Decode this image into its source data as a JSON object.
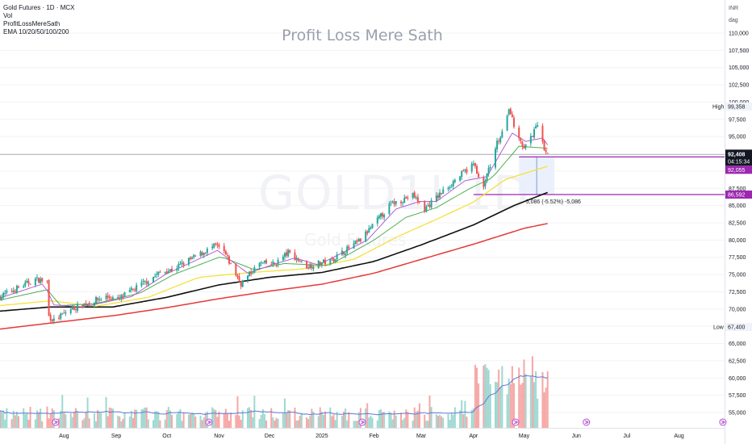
{
  "legend": {
    "title": "Gold Futures · 1D · MCX",
    "line2": "Vol",
    "line3": "ProfitLossMereSath",
    "line4": "EMA 10/20/50/100/200"
  },
  "watermark": {
    "main": "Profit Loss Mere Sath",
    "symbol": "GOLD1! 1D",
    "name": "Gold Futures"
  },
  "axis_header": {
    "currency": "INR",
    "unit": "dag"
  },
  "colors": {
    "up": "#26a69a",
    "down": "#ef5350",
    "ema10": "#b55dd6",
    "ema20": "#4caf50",
    "ema50": "#f5e13a",
    "ema100": "#111111",
    "ema200": "#e53935",
    "purple": "#9c27b0"
  },
  "chart_data": {
    "type": "candlestick",
    "title": "",
    "y_axis": {
      "ticks": [
        110000,
        107500,
        105000,
        102500,
        100000,
        97500,
        95000,
        92500,
        90000,
        87500,
        85000,
        82500,
        80000,
        77500,
        75000,
        72500,
        70000,
        67500,
        65000,
        62500,
        60000,
        57500,
        55000
      ],
      "tick_labels": [
        "110,000",
        "107,500",
        "105,000",
        "102,500",
        "100,000",
        "97,500",
        "95,000",
        "92,500",
        "90,000",
        "87,500",
        "85,000",
        "82,500",
        "80,000",
        "77,500",
        "75,000",
        "72,500",
        "70,000",
        "67,500",
        "65,000",
        "62,500",
        "60,000",
        "57,500",
        "55,000"
      ],
      "ylim": [
        54000,
        111500
      ]
    },
    "x_axis": {
      "labels": [
        "Aug",
        "Sep",
        "Oct",
        "Nov",
        "Dec",
        "2025",
        "Feb",
        "Mar",
        "Apr",
        "May",
        "Jun",
        "Jul",
        "Aug"
      ],
      "x_start": "2024-06-24",
      "x_end": "2025-08-28"
    },
    "markers": {
      "high": {
        "label": "High",
        "value": "99,358"
      },
      "low": {
        "label": "Low",
        "value": "67,400"
      },
      "last_price": {
        "value": "92,408",
        "countdown": "04:15:34"
      },
      "line_a": {
        "value": "92,055"
      },
      "line_b": {
        "value": "86,592"
      },
      "measure": "-5,086 (-5.52%) -5,086"
    },
    "price_keypoints": [
      {
        "date": "2024-06-24",
        "price": 71800
      },
      {
        "date": "2024-07-15",
        "price": 74300
      },
      {
        "date": "2024-07-22",
        "price": 74000
      },
      {
        "date": "2024-07-23",
        "price": 69000
      },
      {
        "date": "2024-07-26",
        "price": 68300
      },
      {
        "date": "2024-08-05",
        "price": 70000
      },
      {
        "date": "2024-08-26",
        "price": 71800
      },
      {
        "date": "2024-09-02",
        "price": 71400
      },
      {
        "date": "2024-09-27",
        "price": 75300
      },
      {
        "date": "2024-10-04",
        "price": 75700
      },
      {
        "date": "2024-10-30",
        "price": 79200
      },
      {
        "date": "2024-11-04",
        "price": 78200
      },
      {
        "date": "2024-11-14",
        "price": 73700
      },
      {
        "date": "2024-11-25",
        "price": 76600
      },
      {
        "date": "2024-12-04",
        "price": 76500
      },
      {
        "date": "2024-12-12",
        "price": 78200
      },
      {
        "date": "2024-12-23",
        "price": 76200
      },
      {
        "date": "2025-01-06",
        "price": 77000
      },
      {
        "date": "2025-01-24",
        "price": 80000
      },
      {
        "date": "2025-02-11",
        "price": 85200
      },
      {
        "date": "2025-02-24",
        "price": 86500
      },
      {
        "date": "2025-03-03",
        "price": 84500
      },
      {
        "date": "2025-03-20",
        "price": 88500
      },
      {
        "date": "2025-04-01",
        "price": 91000
      },
      {
        "date": "2025-04-07",
        "price": 87800
      },
      {
        "date": "2025-04-15",
        "price": 94000
      },
      {
        "date": "2025-04-22",
        "price": 98500
      },
      {
        "date": "2025-04-28",
        "price": 95200
      },
      {
        "date": "2025-05-01",
        "price": 93200
      },
      {
        "date": "2025-05-09",
        "price": 96500
      },
      {
        "date": "2025-05-13",
        "price": 93300
      },
      {
        "date": "2025-05-15",
        "price": 92400
      }
    ],
    "ema_keypoints": {
      "ema10": [
        {
          "date": "2024-06-24",
          "price": 71600
        },
        {
          "date": "2024-07-20",
          "price": 73700
        },
        {
          "date": "2024-07-26",
          "price": 70600
        },
        {
          "date": "2024-08-12",
          "price": 70300
        },
        {
          "date": "2024-09-10",
          "price": 71800
        },
        {
          "date": "2024-09-30",
          "price": 75000
        },
        {
          "date": "2024-10-31",
          "price": 78500
        },
        {
          "date": "2024-11-18",
          "price": 75200
        },
        {
          "date": "2024-12-05",
          "price": 76600
        },
        {
          "date": "2024-12-16",
          "price": 77400
        },
        {
          "date": "2024-12-30",
          "price": 76400
        },
        {
          "date": "2025-01-28",
          "price": 80000
        },
        {
          "date": "2025-02-14",
          "price": 84500
        },
        {
          "date": "2025-02-28",
          "price": 85600
        },
        {
          "date": "2025-03-10",
          "price": 85600
        },
        {
          "date": "2025-03-27",
          "price": 88600
        },
        {
          "date": "2025-04-09",
          "price": 89200
        },
        {
          "date": "2025-04-24",
          "price": 95500
        },
        {
          "date": "2025-05-02",
          "price": 94300
        },
        {
          "date": "2025-05-12",
          "price": 94800
        },
        {
          "date": "2025-05-15",
          "price": 93800
        }
      ],
      "ema20": [
        {
          "date": "2024-06-24",
          "price": 71300
        },
        {
          "date": "2024-07-22",
          "price": 72800
        },
        {
          "date": "2024-07-30",
          "price": 70500
        },
        {
          "date": "2024-08-20",
          "price": 70800
        },
        {
          "date": "2024-09-15",
          "price": 72300
        },
        {
          "date": "2024-10-05",
          "price": 75000
        },
        {
          "date": "2024-11-02",
          "price": 77600
        },
        {
          "date": "2024-11-22",
          "price": 75700
        },
        {
          "date": "2024-12-10",
          "price": 76600
        },
        {
          "date": "2025-01-05",
          "price": 76300
        },
        {
          "date": "2025-02-01",
          "price": 80000
        },
        {
          "date": "2025-02-20",
          "price": 83300
        },
        {
          "date": "2025-03-10",
          "price": 84700
        },
        {
          "date": "2025-03-30",
          "price": 87500
        },
        {
          "date": "2025-04-12",
          "price": 89000
        },
        {
          "date": "2025-04-28",
          "price": 93600
        },
        {
          "date": "2025-05-15",
          "price": 93300
        }
      ],
      "ema50": [
        {
          "date": "2024-06-24",
          "price": 70500
        },
        {
          "date": "2024-07-24",
          "price": 71200
        },
        {
          "date": "2024-08-20",
          "price": 70400
        },
        {
          "date": "2024-09-20",
          "price": 71700
        },
        {
          "date": "2024-10-20",
          "price": 74600
        },
        {
          "date": "2024-11-20",
          "price": 75300
        },
        {
          "date": "2024-12-20",
          "price": 75800
        },
        {
          "date": "2025-01-20",
          "price": 77200
        },
        {
          "date": "2025-02-15",
          "price": 80500
        },
        {
          "date": "2025-03-10",
          "price": 83000
        },
        {
          "date": "2025-04-01",
          "price": 85500
        },
        {
          "date": "2025-04-20",
          "price": 88800
        },
        {
          "date": "2025-05-15",
          "price": 90700
        }
      ],
      "ema100": [
        {
          "date": "2024-06-24",
          "price": 69700
        },
        {
          "date": "2024-07-24",
          "price": 70300
        },
        {
          "date": "2024-08-30",
          "price": 70300
        },
        {
          "date": "2024-10-01",
          "price": 71700
        },
        {
          "date": "2024-11-01",
          "price": 73500
        },
        {
          "date": "2024-12-01",
          "price": 74600
        },
        {
          "date": "2025-01-01",
          "price": 75300
        },
        {
          "date": "2025-02-01",
          "price": 76900
        },
        {
          "date": "2025-03-01",
          "price": 79300
        },
        {
          "date": "2025-04-01",
          "price": 82200
        },
        {
          "date": "2025-04-25",
          "price": 85000
        },
        {
          "date": "2025-05-15",
          "price": 86900
        }
      ],
      "ema200": [
        {
          "date": "2024-06-24",
          "price": 67100
        },
        {
          "date": "2024-08-01",
          "price": 68200
        },
        {
          "date": "2024-09-01",
          "price": 69100
        },
        {
          "date": "2024-10-01",
          "price": 70200
        },
        {
          "date": "2024-11-01",
          "price": 71500
        },
        {
          "date": "2024-12-01",
          "price": 72600
        },
        {
          "date": "2025-01-01",
          "price": 73600
        },
        {
          "date": "2025-02-01",
          "price": 75200
        },
        {
          "date": "2025-03-01",
          "price": 77200
        },
        {
          "date": "2025-04-01",
          "price": 79400
        },
        {
          "date": "2025-05-01",
          "price": 81700
        },
        {
          "date": "2025-05-15",
          "price": 82400
        }
      ]
    }
  }
}
